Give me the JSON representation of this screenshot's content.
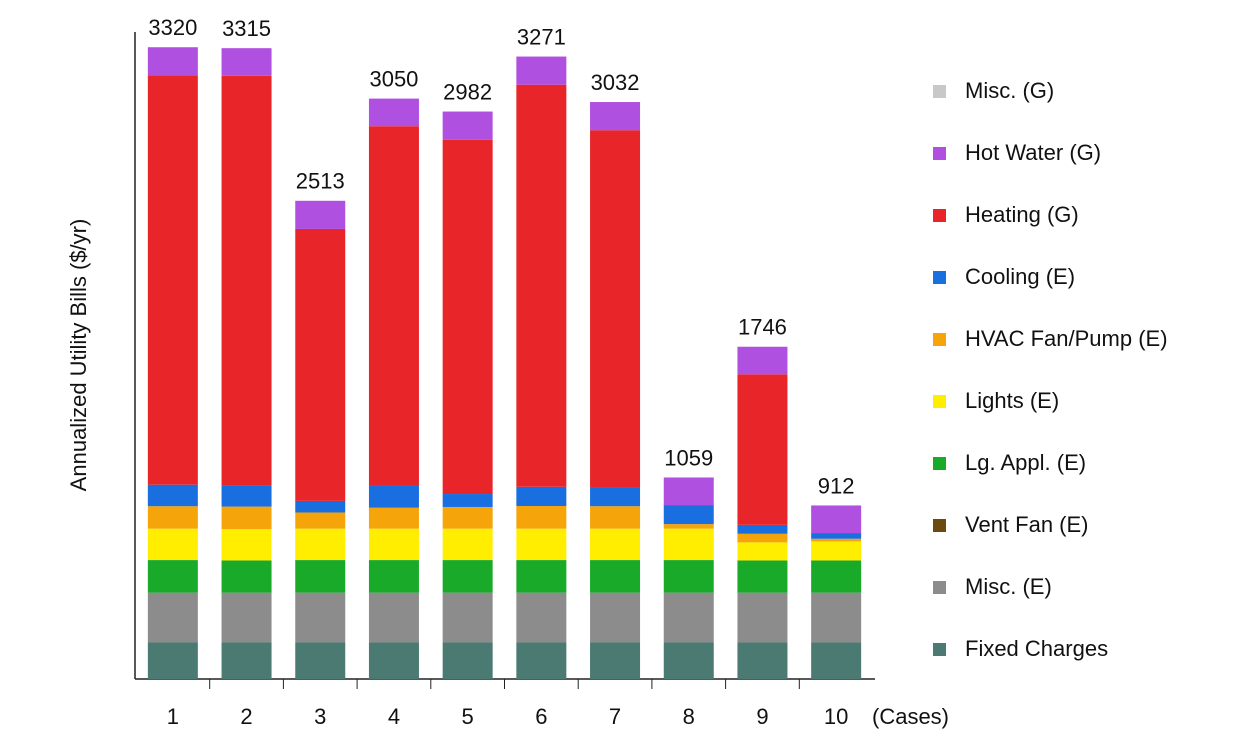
{
  "chart_data": {
    "type": "stacked_bar",
    "y_label": "Annualized Utility Bills ($/yr)",
    "x_unit_label": "(Cases)",
    "categories": [
      "1",
      "2",
      "3",
      "4",
      "5",
      "6",
      "7",
      "8",
      "9",
      "10"
    ],
    "totals": [
      3320,
      3315,
      2513,
      3050,
      2982,
      3271,
      3032,
      1059,
      1746,
      912
    ],
    "ylim": [
      0,
      3400
    ],
    "series": [
      {
        "name": "Fixed Charges",
        "color": "#4a7a72",
        "values": [
          192,
          192,
          192,
          192,
          192,
          192,
          192,
          192,
          192,
          192
        ]
      },
      {
        "name": "Misc. (E)",
        "color": "#8c8c8c",
        "values": [
          262,
          262,
          262,
          262,
          262,
          262,
          262,
          262,
          262,
          262
        ]
      },
      {
        "name": "Vent Fan (E)",
        "color": "#6b4a10",
        "values": [
          0,
          0,
          0,
          0,
          0,
          0,
          0,
          0,
          0,
          0
        ]
      },
      {
        "name": "Lg. Appl. (E)",
        "color": "#1aaa2a",
        "values": [
          171,
          169,
          171,
          171,
          171,
          171,
          171,
          171,
          169,
          169
        ]
      },
      {
        "name": "Lights (E)",
        "color": "#ffee00",
        "values": [
          165,
          165,
          165,
          165,
          165,
          165,
          165,
          165,
          95,
          100
        ]
      },
      {
        "name": "HVAC Fan/Pump (E)",
        "color": "#f5a50a",
        "values": [
          118,
          118,
          85,
          110,
          114,
          119,
          118,
          24,
          45,
          14
        ]
      },
      {
        "name": "Cooling (E)",
        "color": "#1a6fe0",
        "values": [
          113,
          113,
          61,
          117,
          68,
          101,
          96,
          100,
          47,
          30
        ]
      },
      {
        "name": "Heating (G)",
        "color": "#e8262a",
        "values": [
          2151,
          2151,
          1429,
          1888,
          1862,
          2113,
          1880,
          0,
          791,
          0
        ]
      },
      {
        "name": "Hot Water (G)",
        "color": "#b050e0",
        "values": [
          148,
          145,
          148,
          145,
          148,
          148,
          148,
          145,
          145,
          145
        ]
      },
      {
        "name": "Misc. (G)",
        "color": "#c8c8c8",
        "values": [
          0,
          0,
          0,
          0,
          0,
          0,
          0,
          0,
          0,
          0
        ]
      }
    ]
  }
}
